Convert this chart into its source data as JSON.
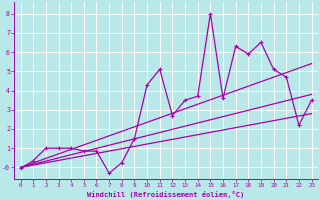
{
  "xlabel": "Windchill (Refroidissement éolien,°C)",
  "bg_color": "#b8e8e8",
  "grid_color": "#a0d0d0",
  "line_color": "#aa00aa",
  "xlim": [
    -0.5,
    23.5
  ],
  "ylim": [
    -0.6,
    8.6
  ],
  "xticks": [
    0,
    1,
    2,
    3,
    4,
    5,
    6,
    7,
    8,
    9,
    10,
    11,
    12,
    13,
    14,
    15,
    16,
    17,
    18,
    19,
    20,
    21,
    22,
    23
  ],
  "yticks": [
    0,
    1,
    2,
    3,
    4,
    5,
    6,
    7,
    8
  ],
  "ytick_labels": [
    "-0",
    "1",
    "2",
    "3",
    "4",
    "5",
    "6",
    "7",
    "8"
  ],
  "line1_x": [
    0,
    1,
    2,
    3,
    4,
    5,
    6,
    7,
    8,
    9,
    10,
    11,
    12,
    13,
    14,
    15,
    16,
    17,
    18,
    19,
    20,
    21,
    22,
    23
  ],
  "line1_y": [
    -0.05,
    0.35,
    1.0,
    1.0,
    1.0,
    0.85,
    0.85,
    -0.3,
    0.25,
    1.5,
    4.3,
    5.1,
    2.7,
    3.5,
    3.7,
    8.0,
    3.6,
    6.3,
    5.9,
    6.5,
    5.1,
    4.7,
    2.2,
    3.5
  ],
  "line2_x": [
    0,
    23
  ],
  "line2_y": [
    0.0,
    2.8
  ],
  "line3_x": [
    0,
    23
  ],
  "line3_y": [
    0.0,
    3.8
  ],
  "line4_x": [
    0,
    23
  ],
  "line4_y": [
    0.0,
    5.4
  ]
}
